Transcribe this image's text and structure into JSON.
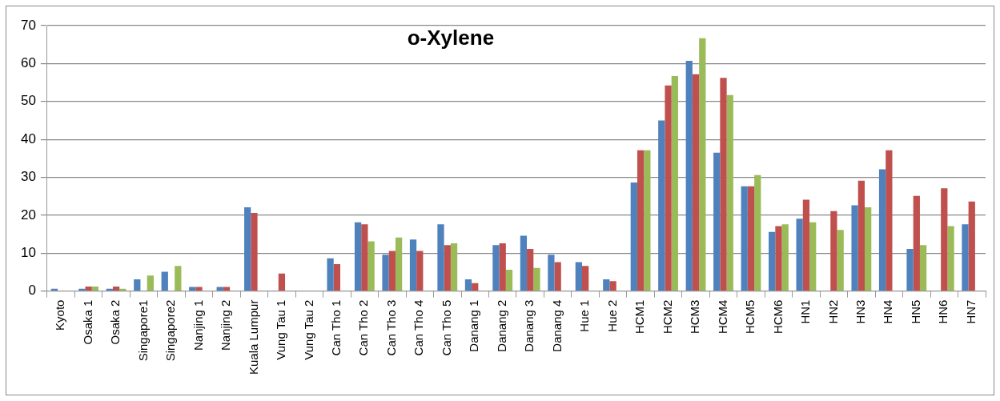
{
  "chart_data": {
    "type": "bar",
    "title": "o-Xylene",
    "categories": [
      "Kyoto",
      "Osaka 1",
      "Osaka 2",
      "Singapore1",
      "Singapore2",
      "Nanjing 1",
      "Nanjing 2",
      "Kuala Lumpur",
      "Vung Tau 1",
      "Vung Tau 2",
      "Can Tho 1",
      "Can Tho 2",
      "Can Tho 3",
      "Can Tho 4",
      "Can Tho 5",
      "Danang 1",
      "Danang 2",
      "Danang 3",
      "Danang 4",
      "Hue 1",
      "Hue 2",
      "HCM1",
      "HCM2",
      "HCM3",
      "HCM4",
      "HCM5",
      "HCM6",
      "HN1",
      "HN2",
      "HN3",
      "HN4",
      "HN5",
      "HN6",
      "HN7"
    ],
    "series": [
      {
        "color": "#4f81bd",
        "values": [
          0.6,
          0.6,
          0.6,
          3.1,
          5.1,
          1.1,
          1.1,
          22.1,
          null,
          null,
          8.6,
          18.1,
          9.6,
          13.6,
          17.6,
          3.1,
          12.1,
          14.6,
          9.6,
          7.6,
          3.1,
          28.6,
          45,
          60.7,
          36.5,
          27.6,
          15.6,
          19.1,
          null,
          22.6,
          32.1,
          11.1,
          null,
          17.6
        ]
      },
      {
        "color": "#c0504d",
        "values": [
          null,
          1.2,
          1.2,
          null,
          null,
          1.1,
          1.1,
          20.6,
          4.6,
          null,
          7.1,
          17.6,
          10.6,
          10.6,
          12.1,
          2.1,
          12.6,
          11.1,
          7.6,
          6.6,
          2.6,
          37.1,
          54.2,
          57.2,
          56.2,
          27.6,
          17.1,
          24.1,
          21.1,
          29.1,
          37.1,
          25.1,
          27.1,
          23.6
        ]
      },
      {
        "color": "#9bbb59",
        "values": [
          null,
          1.2,
          0.6,
          4.1,
          6.6,
          null,
          null,
          null,
          null,
          null,
          null,
          13.1,
          14.1,
          null,
          12.6,
          null,
          5.6,
          6.1,
          null,
          null,
          null,
          37.1,
          56.7,
          66.7,
          51.7,
          30.6,
          17.6,
          18.1,
          16.1,
          22.1,
          null,
          12.1,
          17.1,
          null
        ]
      }
    ],
    "ylim": [
      0,
      70
    ],
    "yticks": [
      0,
      10,
      20,
      30,
      40,
      50,
      60,
      70
    ],
    "grid": "y"
  }
}
